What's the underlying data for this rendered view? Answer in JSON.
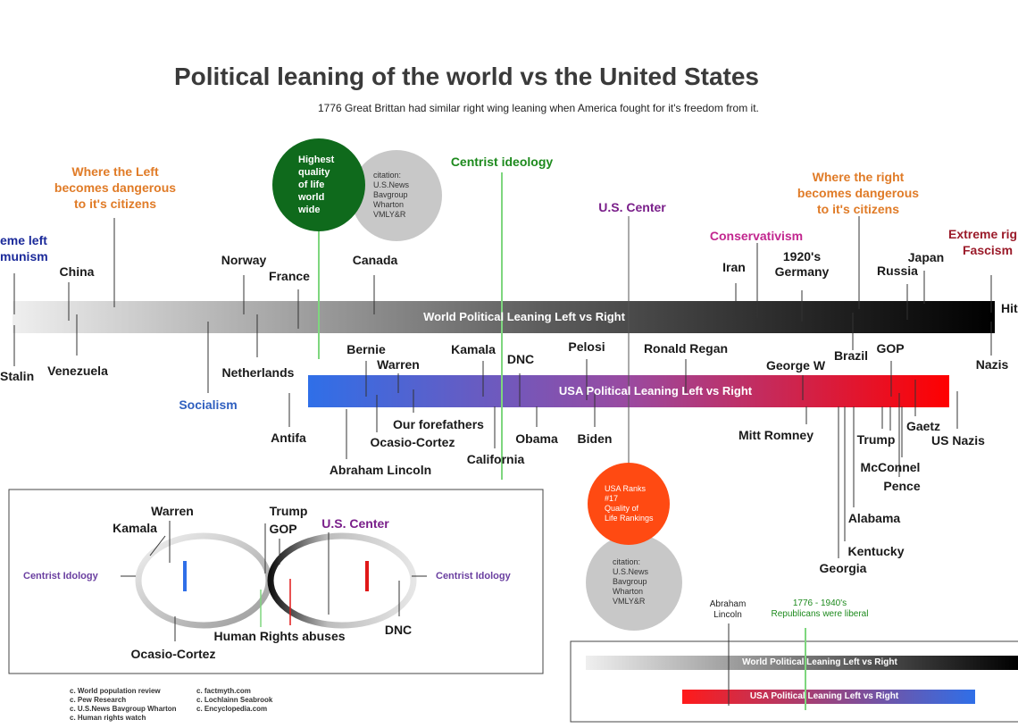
{
  "title": "Political leaning of the world vs the United States",
  "subtitle": "1776 Great Brittan had similar right wing leaning when America fought for it's freedom from it.",
  "colors": {
    "world_bar_start": "#efefef",
    "world_bar_end": "#000000",
    "usa_bar_start": "#2f6fe8",
    "usa_bar_end": "#ff0000",
    "centrist_line": "#7ed67e",
    "quality_circle": "#0f6a1c",
    "citation_circle": "#c8c8c8",
    "usa_rank_circle": "#ff4a12"
  },
  "bars": {
    "world": "World Political Leaning Left vs Right",
    "usa": "USA Political Leaning Left vs Right"
  },
  "zones": {
    "left_danger": [
      "Where the Left",
      "becomes dangerous",
      "to it's citizens"
    ],
    "right_danger": [
      "Where the right",
      "becomes dangerous",
      "to it's citizens"
    ],
    "extreme_left": [
      "eme left",
      "munism"
    ],
    "extreme_right": [
      "Extreme rig",
      "Fascism"
    ],
    "centrist": "Centrist ideology",
    "us_center": "U.S. Center",
    "conservativism": "Conservativism",
    "socialism": "Socialism"
  },
  "circles": {
    "quality": [
      "Highest",
      "quality",
      "of life",
      "world",
      "wide"
    ],
    "citation": [
      "citation:",
      "U.S.News",
      "Bavgroup",
      "Wharton",
      "VMLY&R"
    ],
    "usa_rank": [
      "USA Ranks",
      "#17",
      "Quality of",
      "Life Rankings"
    ],
    "citation2": [
      "citation:",
      "U.S.News",
      "Bavgroup",
      "Wharton",
      "VMLY&R"
    ]
  },
  "world_above": {
    "china": "China",
    "norway": "Norway",
    "france": "France",
    "canada": "Canada",
    "iran": "Iran",
    "germany": [
      "1920's",
      "Germany"
    ],
    "russia": "Russia",
    "japan": "Japan",
    "hitler": "Hit"
  },
  "world_below": {
    "stalin": "Stalin",
    "venezuela": "Venezuela",
    "netherlands": "Netherlands",
    "brazil": "Brazil",
    "nazis": "Nazis"
  },
  "usa_above": {
    "bernie": "Bernie",
    "warren": "Warren",
    "kamala": "Kamala",
    "dnc": "DNC",
    "pelosi": "Pelosi",
    "regan": "Ronald Regan",
    "george_w": "George W",
    "gop": "GOP"
  },
  "usa_below": {
    "antifa": "Antifa",
    "lincoln": "Abraham Lincoln",
    "forefathers": "Our forefathers",
    "ocasio": "Ocasio-Cortez",
    "california": "California",
    "obama": "Obama",
    "biden": "Biden",
    "romney": "Mitt Romney",
    "trump": "Trump",
    "gaetz": "Gaetz",
    "us_nazis": "US Nazis",
    "mcconnel": "McConnel",
    "pence": "Pence",
    "alabama": "Alabama",
    "kentucky": "Kentucky",
    "georgia": "Georgia"
  },
  "inset_left": {
    "warren": "Warren",
    "kamala": "Kamala",
    "trump": "Trump",
    "gop": "GOP",
    "us_center": "U.S. Center",
    "centrist_left": "Centrist Idology",
    "centrist_right": "Centrist Idology",
    "human_rights": "Human Rights abuses",
    "dnc": "DNC",
    "ocasio": "Ocasio-Cortez"
  },
  "inset_right": {
    "lincoln": [
      "Abraham",
      "Lincoln"
    ],
    "years": [
      "1776 - 1940's",
      "Republicans were liberal"
    ],
    "world_bar": "World Political Leaning Left vs Right",
    "usa_bar": "USA Political Leaning Left vs Right"
  },
  "references": {
    "col1": [
      "c. World population review",
      "c. Pew Research",
      "c. U.S.News Bavgroup Wharton",
      "c. Human rights watch"
    ],
    "col2": [
      "c. factmyth.com",
      "c. Lochlainn Seabrook",
      "c. Encyclopedia.com"
    ]
  }
}
